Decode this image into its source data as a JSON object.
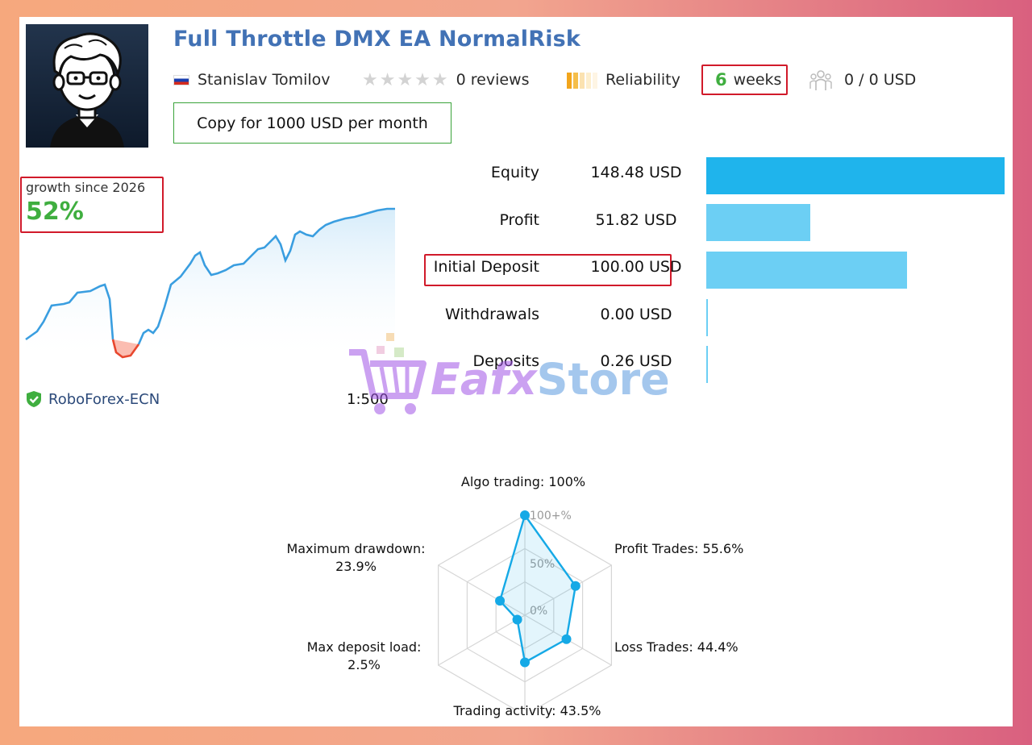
{
  "header": {
    "title": "Full Throttle DMX EA NormalRisk",
    "author": "Stanislav Tomilov",
    "reviews": "0 reviews",
    "reliability_label": "Reliability",
    "weeks_number": "6",
    "weeks_unit": "weeks",
    "subscribers": "0 / 0 USD",
    "copy_button": "Copy for 1000 USD per month"
  },
  "growth": {
    "label": "growth since 2026",
    "value": "52%"
  },
  "account": {
    "broker": "RoboForex-ECN",
    "leverage": "1:500"
  },
  "financials": [
    {
      "label": "Equity",
      "value": "148.48 USD",
      "amount": 148.48
    },
    {
      "label": "Profit",
      "value": "51.82 USD",
      "amount": 51.82
    },
    {
      "label": "Initial Deposit",
      "value": "100.00 USD",
      "amount": 100.0
    },
    {
      "label": "Withdrawals",
      "value": "0.00 USD",
      "amount": 0.0
    },
    {
      "label": "Deposits",
      "value": "0.26 USD",
      "amount": 0.26
    }
  ],
  "radar": {
    "scale_labels": [
      "100+%",
      "50%",
      "0%"
    ],
    "axes": [
      {
        "line1": "Algo trading: 100%",
        "line2": "",
        "value": 100
      },
      {
        "line1": "Profit Trades: 55.6%",
        "line2": "",
        "value": 55.6
      },
      {
        "line1": "Loss Trades: 44.4%",
        "line2": "",
        "value": 44.4
      },
      {
        "line1": "Trading activity: 43.5%",
        "line2": "",
        "value": 43.5
      },
      {
        "line1": "Max deposit load:",
        "line2": "2.5%",
        "value": 2.5
      },
      {
        "line1": "Maximum drawdown:",
        "line2": "23.9%",
        "value": 23.9
      }
    ]
  },
  "watermark": {
    "brand_a": "Eafx",
    "brand_b": "Store"
  },
  "colors": {
    "title": "#4272b5",
    "growth": "#3fae3f",
    "bar_main": "#1fb4ec",
    "bar": "#6ccff4",
    "radar_line": "#15a9e6",
    "highlight": "#d11a2a"
  }
}
